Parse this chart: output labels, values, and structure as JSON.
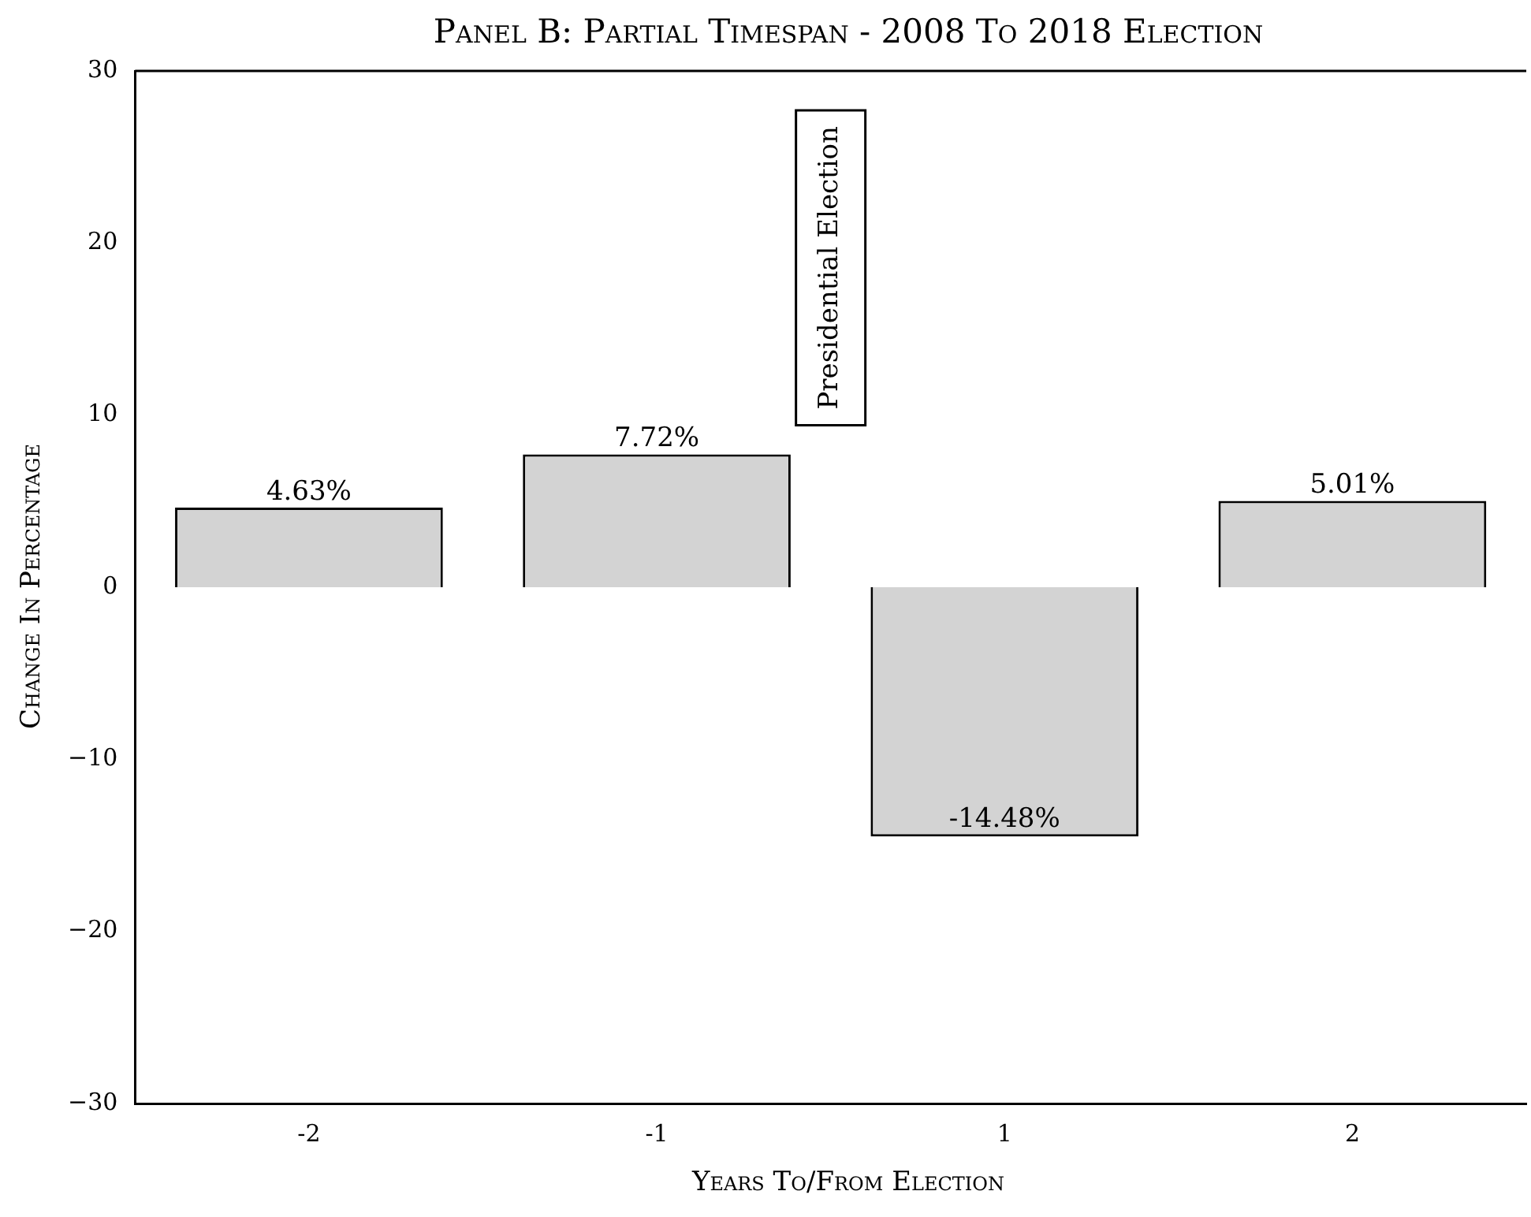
{
  "chart_data": {
    "type": "bar",
    "title": "Panel B: Partial Timespan - 2008 To 2018 Election",
    "xlabel": "Years To/From Election",
    "ylabel": "Change In Percentage",
    "categories": [
      "-2",
      "-1",
      "1",
      "2"
    ],
    "values": [
      4.63,
      7.72,
      -14.48,
      5.01
    ],
    "value_labels": [
      "4.63%",
      "7.72%",
      "-14.48%",
      "5.01%"
    ],
    "color": "#d3d3d3",
    "ylim": [
      -30,
      30
    ],
    "yticks": [
      {
        "value": -30,
        "label": "−30"
      },
      {
        "value": -20,
        "label": "−20"
      },
      {
        "value": -10,
        "label": "−10"
      },
      0,
      10,
      20,
      30
    ],
    "annotations": [
      "Presidential Election"
    ],
    "grid": false,
    "legend": false
  }
}
